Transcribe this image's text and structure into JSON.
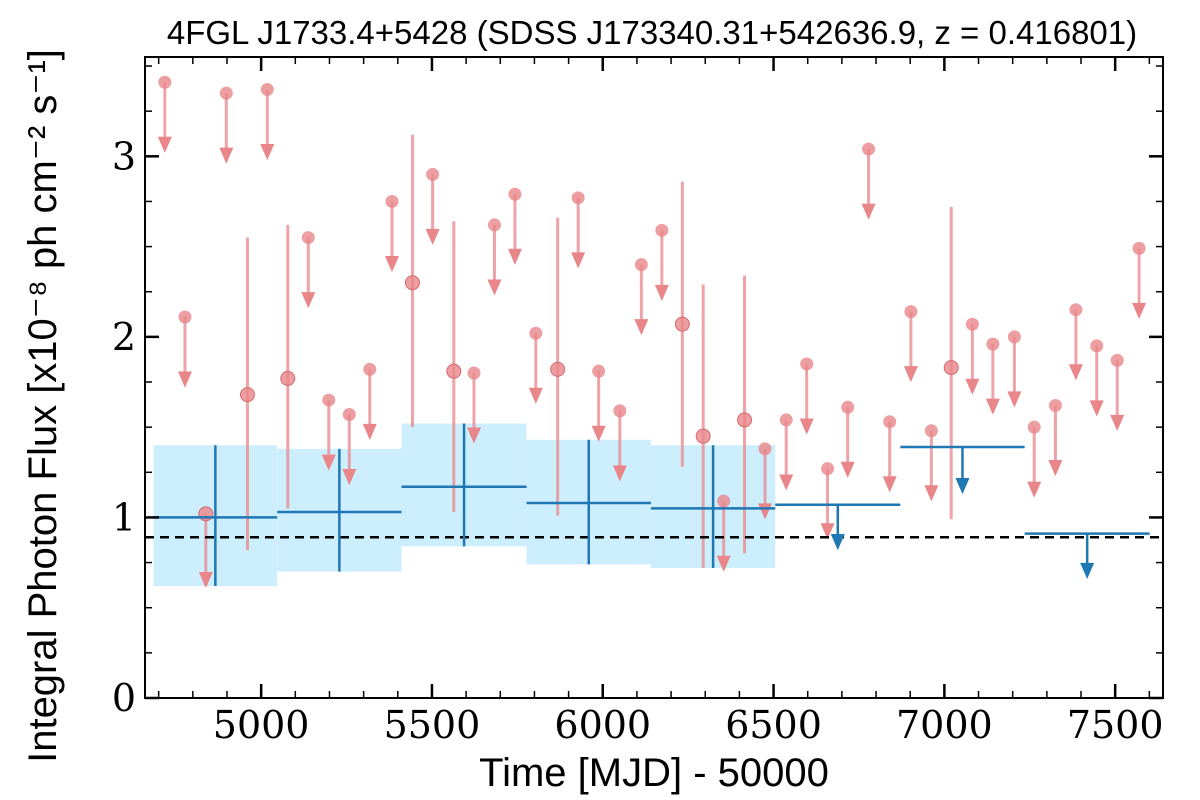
{
  "chart_data": {
    "type": "scatter",
    "title": "4FGL J1733.4+5428 (SDSS J173340.31+542636.9, z = 0.416801)",
    "xlabel": "Time [MJD] - 50000",
    "ylabel": "Integral Photon Flux [x10⁻⁸ ph cm⁻² s⁻¹]",
    "xlim": [
      4660,
      7640
    ],
    "ylim": [
      0,
      3.55
    ],
    "x_ticks": [
      5000,
      5500,
      6000,
      6500,
      7000,
      7500
    ],
    "x_tick_labels": [
      "5000",
      "5500",
      "6000",
      "6500",
      "7000",
      "7500"
    ],
    "y_ticks": [
      0,
      1,
      2,
      3
    ],
    "y_tick_labels": [
      "0",
      "1",
      "2",
      "3"
    ],
    "reference_line": {
      "y": 0.89,
      "style": "dashed",
      "color": "#000000"
    },
    "colors": {
      "short_bins": "#e8868a",
      "long_bins": "#1f77b4",
      "long_bins_band": "#cdeefd"
    },
    "series": [
      {
        "kind": "short_bin_detections",
        "points": [
          {
            "x": 4838,
            "y": 1.02,
            "ylo": 0.62,
            "yhi": 1.02
          },
          {
            "x": 4960,
            "y": 1.68,
            "ylo": 0.82,
            "yhi": 2.55
          },
          {
            "x": 5078,
            "y": 1.77,
            "ylo": 1.05,
            "yhi": 2.62
          },
          {
            "x": 5443,
            "y": 2.3,
            "ylo": 1.5,
            "yhi": 3.12
          },
          {
            "x": 5564,
            "y": 1.81,
            "ylo": 1.03,
            "yhi": 2.64
          },
          {
            "x": 5868,
            "y": 1.82,
            "ylo": 1.01,
            "yhi": 2.66
          },
          {
            "x": 6233,
            "y": 2.07,
            "ylo": 1.28,
            "yhi": 2.86
          },
          {
            "x": 6294,
            "y": 1.45,
            "ylo": 0.72,
            "yhi": 2.29
          },
          {
            "x": 6415,
            "y": 1.54,
            "ylo": 0.8,
            "yhi": 2.34
          },
          {
            "x": 7020,
            "y": 1.83,
            "ylo": 0.99,
            "yhi": 2.72
          }
        ]
      },
      {
        "kind": "short_bin_upper_limits",
        "points": [
          {
            "x": 4718,
            "y": 3.41
          },
          {
            "x": 4777,
            "y": 2.11
          },
          {
            "x": 4898,
            "y": 3.35
          },
          {
            "x": 5018,
            "y": 3.37
          },
          {
            "x": 5138,
            "y": 2.55
          },
          {
            "x": 5198,
            "y": 1.65
          },
          {
            "x": 5258,
            "y": 1.57
          },
          {
            "x": 5318,
            "y": 1.82
          },
          {
            "x": 5383,
            "y": 2.75
          },
          {
            "x": 5502,
            "y": 2.9
          },
          {
            "x": 5623,
            "y": 1.8
          },
          {
            "x": 5683,
            "y": 2.62
          },
          {
            "x": 5743,
            "y": 2.79
          },
          {
            "x": 5804,
            "y": 2.02
          },
          {
            "x": 5928,
            "y": 2.77
          },
          {
            "x": 5988,
            "y": 1.81
          },
          {
            "x": 6050,
            "y": 1.59
          },
          {
            "x": 6113,
            "y": 2.4
          },
          {
            "x": 6173,
            "y": 2.59
          },
          {
            "x": 6354,
            "y": 1.09
          },
          {
            "x": 6475,
            "y": 1.38
          },
          {
            "x": 6537,
            "y": 1.54
          },
          {
            "x": 6597,
            "y": 1.85
          },
          {
            "x": 6658,
            "y": 1.27
          },
          {
            "x": 6717,
            "y": 1.61
          },
          {
            "x": 6778,
            "y": 3.04
          },
          {
            "x": 6840,
            "y": 1.53
          },
          {
            "x": 6902,
            "y": 2.14
          },
          {
            "x": 6962,
            "y": 1.48
          },
          {
            "x": 7082,
            "y": 2.07
          },
          {
            "x": 7142,
            "y": 1.96
          },
          {
            "x": 7205,
            "y": 2.0
          },
          {
            "x": 7263,
            "y": 1.5
          },
          {
            "x": 7325,
            "y": 1.62
          },
          {
            "x": 7385,
            "y": 2.15
          },
          {
            "x": 7446,
            "y": 1.95
          },
          {
            "x": 7506,
            "y": 1.87
          },
          {
            "x": 7570,
            "y": 2.49
          }
        ]
      },
      {
        "kind": "long_bin_detections",
        "points": [
          {
            "x0": 4685,
            "x1": 5047,
            "x": 4866,
            "y": 1.0,
            "ylo": 0.62,
            "yhi": 1.4
          },
          {
            "x0": 5047,
            "x1": 5411,
            "x": 5229,
            "y": 1.03,
            "ylo": 0.7,
            "yhi": 1.38
          },
          {
            "x0": 5411,
            "x1": 5777,
            "x": 5594,
            "y": 1.17,
            "ylo": 0.84,
            "yhi": 1.52
          },
          {
            "x0": 5777,
            "x1": 6141,
            "x": 5959,
            "y": 1.08,
            "ylo": 0.74,
            "yhi": 1.43
          },
          {
            "x0": 6141,
            "x1": 6505,
            "x": 6323,
            "y": 1.05,
            "ylo": 0.72,
            "yhi": 1.4
          }
        ]
      },
      {
        "kind": "long_bin_upper_limits",
        "points": [
          {
            "x0": 6505,
            "x1": 6871,
            "x": 6688,
            "y": 1.07,
            "ylo": 0.83
          },
          {
            "x0": 6871,
            "x1": 7235,
            "x": 7053,
            "y": 1.39,
            "ylo": 1.14
          },
          {
            "x0": 7235,
            "x1": 7601,
            "x": 7418,
            "y": 0.91,
            "ylo": 0.67
          }
        ]
      }
    ]
  }
}
